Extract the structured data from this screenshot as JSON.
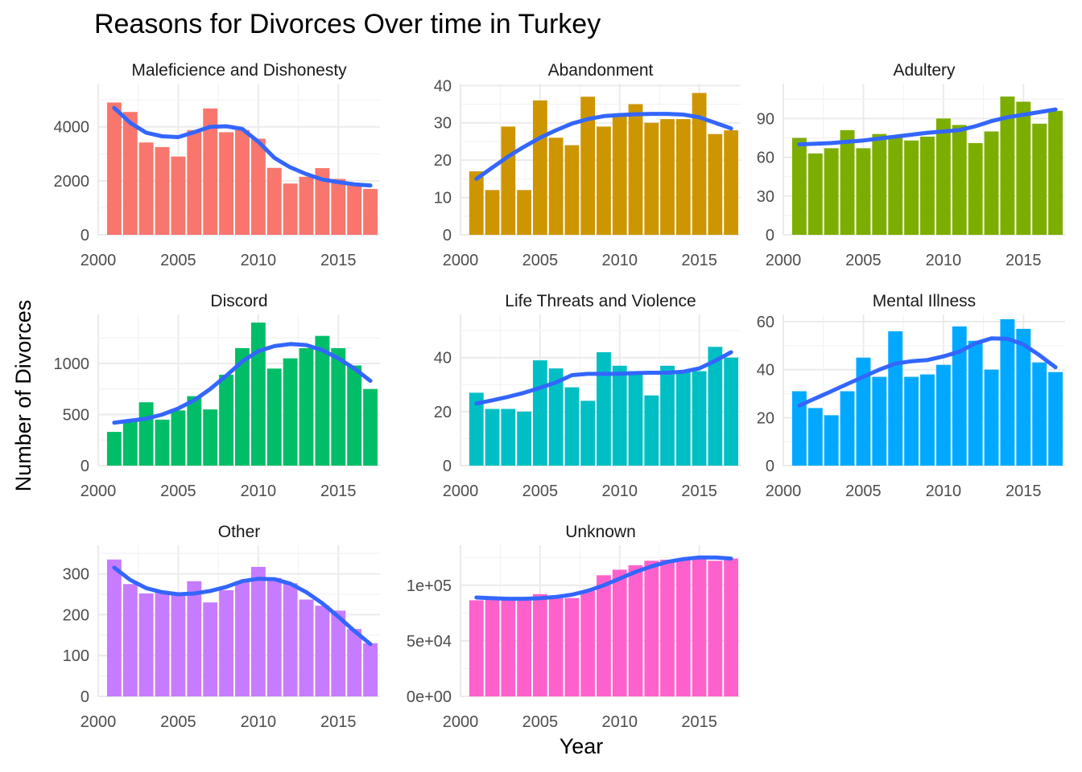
{
  "chart_data": {
    "type": "bar",
    "title": "Reasons for Divorces Over time in Turkey",
    "xlabel": "Year",
    "ylabel": "Number of Divorces",
    "x": [
      2001,
      2002,
      2003,
      2004,
      2005,
      2006,
      2007,
      2008,
      2009,
      2010,
      2011,
      2012,
      2013,
      2014,
      2015,
      2016,
      2017
    ],
    "xlim": [
      2000,
      2017.6
    ],
    "x_ticks": [
      "2000",
      "2005",
      "2010",
      "2015"
    ],
    "trend_line": "smoothed (loess)",
    "trend_color": "#3366ff",
    "panels": [
      {
        "name": "Maleficience and Dishonesty",
        "color": "#f8766d",
        "ylim": [
          0,
          5600
        ],
        "y_ticks": [
          0,
          2000,
          4000
        ],
        "y_tick_labels": [
          "0",
          "2000",
          "4000"
        ],
        "values": [
          4900,
          4550,
          3420,
          3250,
          2900,
          3880,
          4680,
          3800,
          3880,
          3560,
          2480,
          1900,
          2150,
          2470,
          2070,
          1830,
          1700
        ],
        "trend": [
          4700,
          4150,
          3780,
          3650,
          3620,
          3800,
          4000,
          4020,
          3920,
          3450,
          2850,
          2500,
          2250,
          2050,
          1950,
          1870,
          1830
        ]
      },
      {
        "name": "Abandonment",
        "color": "#cd9600",
        "ylim": [
          0,
          40.5
        ],
        "y_ticks": [
          0,
          10,
          20,
          30,
          40
        ],
        "y_tick_labels": [
          "0",
          "10",
          "20",
          "30",
          "40"
        ],
        "values": [
          17,
          12,
          29,
          12,
          36,
          26,
          24,
          37,
          29,
          32,
          35,
          30,
          31,
          31,
          38,
          27,
          28
        ],
        "trend": [
          15,
          18,
          21,
          23.6,
          26,
          28,
          29.8,
          31,
          31.8,
          32.1,
          32.3,
          32.4,
          32.4,
          32.2,
          31.5,
          30,
          28.5
        ]
      },
      {
        "name": "Adultery",
        "color": "#7cae00",
        "ylim": [
          0,
          117
        ],
        "y_ticks": [
          0,
          30,
          60,
          90
        ],
        "y_tick_labels": [
          "0",
          "30",
          "60",
          "90"
        ],
        "values": [
          75,
          63,
          67,
          81,
          67,
          78,
          76,
          73,
          76,
          90,
          85,
          71,
          80,
          107,
          103,
          86,
          96
        ],
        "trend": [
          70,
          70.5,
          71,
          72,
          73,
          74.5,
          76,
          77.5,
          79,
          80,
          81,
          84,
          88,
          91,
          93,
          95,
          97
        ]
      },
      {
        "name": "Discord",
        "color": "#00be67",
        "ylim": [
          0,
          1480
        ],
        "y_ticks": [
          0,
          500,
          1000
        ],
        "y_tick_labels": [
          "0",
          "500",
          "1000"
        ],
        "values": [
          330,
          450,
          620,
          450,
          540,
          680,
          550,
          890,
          1150,
          1400,
          950,
          1050,
          1150,
          1270,
          1150,
          980,
          750
        ],
        "trend": [
          420,
          440,
          460,
          500,
          560,
          640,
          750,
          880,
          1020,
          1120,
          1170,
          1190,
          1180,
          1130,
          1050,
          950,
          830
        ]
      },
      {
        "name": "Life Threats and Violence",
        "color": "#00bfc4",
        "ylim": [
          0,
          56
        ],
        "y_ticks": [
          0,
          20,
          40
        ],
        "y_tick_labels": [
          "0",
          "20",
          "40"
        ],
        "values": [
          27,
          21,
          21,
          20,
          39,
          36,
          29,
          24,
          42,
          37,
          35,
          26,
          37,
          35,
          35,
          44,
          40
        ],
        "trend": [
          23,
          24.2,
          25.5,
          27,
          28.8,
          30.8,
          33.5,
          34,
          34,
          34,
          34.3,
          34.4,
          34.4,
          34.8,
          36,
          38.8,
          42
        ]
      },
      {
        "name": "Mental Illness",
        "color": "#00a9ff",
        "ylim": [
          0,
          63
        ],
        "y_ticks": [
          0,
          20,
          40,
          60
        ],
        "y_tick_labels": [
          "0",
          "20",
          "40",
          "60"
        ],
        "values": [
          31,
          24,
          21,
          31,
          45,
          37,
          56,
          37,
          38,
          42,
          58,
          52,
          40,
          61,
          57,
          43,
          39
        ],
        "trend": [
          25,
          28,
          31,
          34,
          37,
          40,
          42.5,
          43.5,
          44,
          45.5,
          47.5,
          51,
          53,
          52.8,
          50.5,
          46,
          41
        ]
      },
      {
        "name": "Other",
        "color": "#c77cff",
        "ylim": [
          0,
          370
        ],
        "y_ticks": [
          0,
          100,
          200,
          300
        ],
        "y_tick_labels": [
          "0",
          "100",
          "200",
          "300"
        ],
        "values": [
          335,
          275,
          252,
          255,
          250,
          282,
          230,
          260,
          282,
          317,
          290,
          277,
          237,
          222,
          210,
          165,
          130
        ],
        "trend": [
          315,
          285,
          265,
          255,
          250,
          252,
          258,
          268,
          282,
          288,
          287,
          276,
          255,
          228,
          195,
          160,
          128
        ]
      },
      {
        "name": "Unknown",
        "color": "#ff61cc",
        "ylim": [
          0,
          136000
        ],
        "y_ticks": [
          0,
          50000,
          100000
        ],
        "y_tick_labels": [
          "0e+00",
          "5e+04",
          "1e+05"
        ],
        "values": [
          86500,
          87000,
          87000,
          87500,
          92000,
          90000,
          88500,
          95000,
          109000,
          114000,
          118000,
          122000,
          123000,
          124000,
          124000,
          122000,
          124000
        ],
        "trend": [
          89000,
          88300,
          87800,
          87800,
          88300,
          89500,
          91500,
          95000,
          100000,
          106000,
          112000,
          117000,
          121000,
          123500,
          125000,
          125000,
          124000
        ]
      }
    ]
  }
}
